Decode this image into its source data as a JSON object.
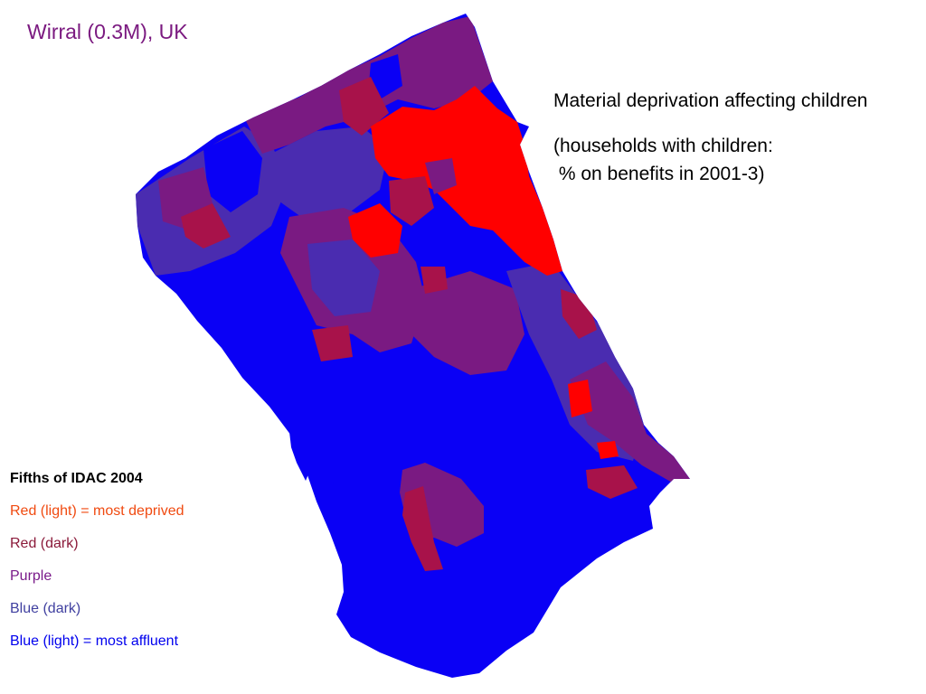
{
  "title": "Wirral (0.3M), UK",
  "subtitle": "Material deprivation affecting children",
  "note": "(households with children:\n % on benefits in 2001-3)",
  "legend": {
    "heading": "Fifths of IDAC 2004",
    "items": [
      {
        "label": "Red (light) = most deprived",
        "color": "#ff0000",
        "text_color": "#f04a10"
      },
      {
        "label": "Red (dark)",
        "color": "#a8124a",
        "text_color": "#8b1a3a"
      },
      {
        "label": "Purple",
        "color": "#7a1a82",
        "text_color": "#7a1a8a"
      },
      {
        "label": "Blue (dark)",
        "color": "#4a2cb0",
        "text_color": "#4040a0"
      },
      {
        "label": "Blue (light) = most affluent",
        "color": "#0a00f5",
        "text_color": "#0000ee"
      }
    ]
  },
  "colors": {
    "title": "#7b1a80",
    "map_base": "#0a00f5"
  }
}
